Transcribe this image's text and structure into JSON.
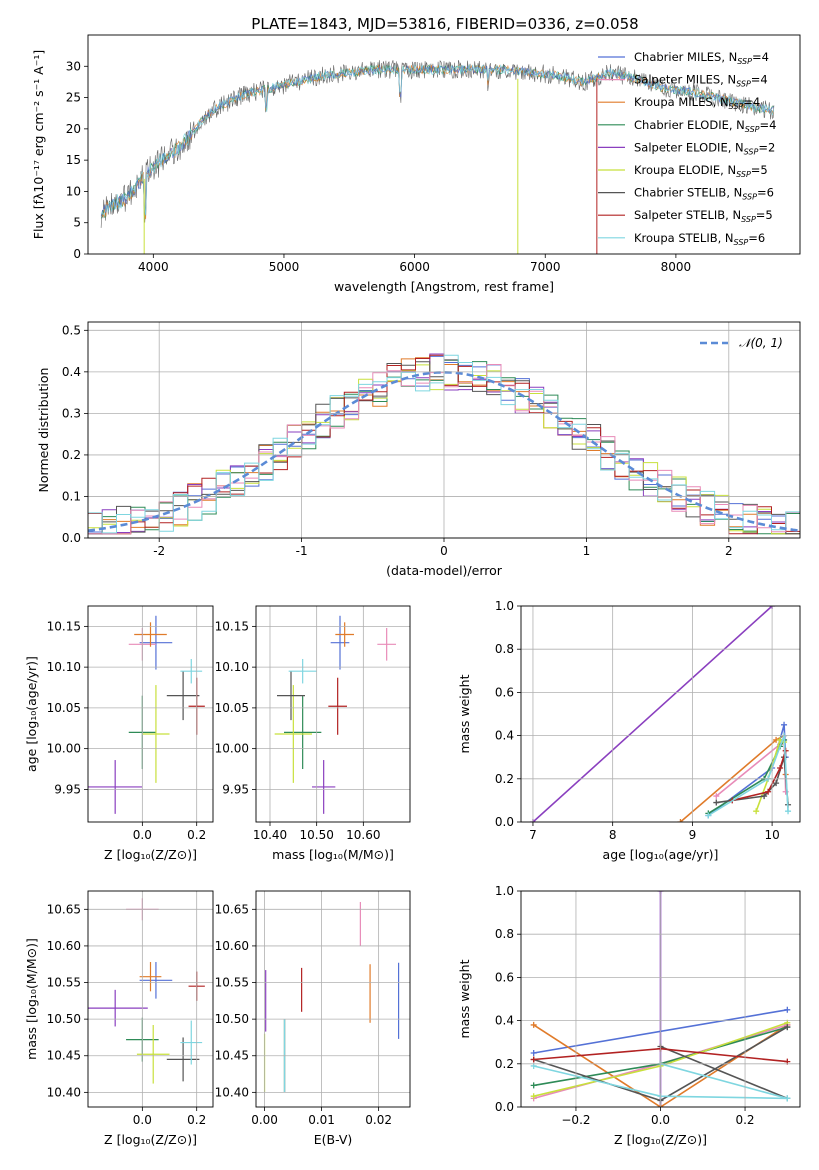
{
  "figure_title": "PLATE=1843, MJD=53816, FIBERID=0336, z=0.058",
  "colors": [
    "#5471d6",
    "#e07b2a",
    "#8a3fbf",
    "#2e8b57",
    "#c8e03c",
    "#555555",
    "#b22222",
    "#e88bb8",
    "#7fd6e0"
  ],
  "chart_data": [
    {
      "id": "spectrum",
      "type": "line",
      "title": "PLATE=1843, MJD=53816, FIBERID=0336, z=0.058",
      "xlabel": "wavelength [Angstrom, rest frame]",
      "ylabel": "Flux [fλ10⁻¹⁷ erg cm⁻² s⁻¹ A⁻¹]",
      "xlim": [
        3500,
        8950
      ],
      "ylim": [
        0,
        35
      ],
      "xticks": [
        4000,
        5000,
        6000,
        7000,
        8000
      ],
      "yticks": [
        0,
        5,
        10,
        15,
        20,
        25,
        30
      ],
      "grid": false,
      "legend_position": "top-right",
      "series": [
        {
          "name": "Chabrier MILES, N_SSP=4",
          "color": "#5471d6"
        },
        {
          "name": "Salpeter MILES, N_SSP=4",
          "color": "#e88bb8"
        },
        {
          "name": "Kroupa MILES, N_SSP=4",
          "color": "#e07b2a"
        },
        {
          "name": "Chabrier ELODIE, N_SSP=4",
          "color": "#2e8b57"
        },
        {
          "name": "Salpeter ELODIE, N_SSP=2",
          "color": "#8a3fbf"
        },
        {
          "name": "Kroupa ELODIE, N_SSP=5",
          "color": "#c8e03c"
        },
        {
          "name": "Chabrier STELIB, N_SSP=6",
          "color": "#555555"
        },
        {
          "name": "Salpeter STELIB, N_SSP=5",
          "color": "#b22222"
        },
        {
          "name": "Kroupa STELIB, N_SSP=6",
          "color": "#7fd6e0"
        }
      ],
      "continuum_x": [
        3600,
        3700,
        3800,
        3900,
        4000,
        4100,
        4200,
        4300,
        4400,
        4500,
        4700,
        4900,
        5100,
        5300,
        5500,
        5700,
        5900,
        6100,
        6300,
        6500,
        6700,
        6900,
        7100,
        7300,
        7500,
        7700,
        7900,
        8100,
        8300,
        8500,
        8700
      ],
      "continuum_y": [
        6.5,
        8.0,
        9.0,
        11.5,
        14.0,
        15.5,
        17.0,
        19.5,
        22.0,
        23.5,
        25.5,
        26.5,
        27.5,
        28.5,
        29.0,
        29.5,
        29.5,
        29.5,
        29.5,
        29.5,
        29.5,
        29.0,
        28.5,
        27.5,
        29.0,
        28.0,
        26.5,
        26.0,
        25.0,
        24.0,
        23.0
      ]
    },
    {
      "id": "residuals",
      "type": "step",
      "xlabel": "(data-model)/error",
      "ylabel": "Normed distribution",
      "xlim": [
        -2.5,
        2.5
      ],
      "ylim": [
        0,
        0.52
      ],
      "xticks": [
        -2,
        -1,
        0,
        1,
        2
      ],
      "yticks": [
        0.0,
        0.1,
        0.2,
        0.3,
        0.4,
        0.5
      ],
      "grid": true,
      "legend_position": "top-right",
      "reference_label": "𝒩(0, 1)",
      "reference_color": "#5b8bd6",
      "bin_width": 0.1
    },
    {
      "id": "age-vs-Z",
      "type": "errorbar",
      "xlabel": "Z [log₁₀(Z/Z⊙)]",
      "ylabel": "age  [log₁₀(age/yr)]",
      "xlim": [
        -0.2,
        0.26
      ],
      "ylim": [
        9.91,
        10.175
      ],
      "xticks": [
        0.0,
        0.2
      ],
      "yticks": [
        9.95,
        10.0,
        10.05,
        10.1,
        10.15
      ],
      "grid": true,
      "points": [
        {
          "color": "#5471d6",
          "x": 0.05,
          "xerr": 0.06,
          "y": 10.13,
          "yerr": 0.033
        },
        {
          "color": "#e88bb8",
          "x": 0.0,
          "xerr": 0.05,
          "y": 10.128,
          "yerr": 0.02
        },
        {
          "color": "#e07b2a",
          "x": 0.03,
          "xerr": 0.06,
          "y": 10.14,
          "yerr": 0.015
        },
        {
          "color": "#2e8b57",
          "x": 0.0,
          "xerr": 0.05,
          "y": 10.02,
          "yerr": 0.045
        },
        {
          "color": "#8a3fbf",
          "x": -0.1,
          "xerr": 0.1,
          "y": 9.953,
          "yerr": 0.033
        },
        {
          "color": "#c8e03c",
          "x": 0.05,
          "xerr": 0.05,
          "y": 10.018,
          "yerr": 0.06
        },
        {
          "color": "#555555",
          "x": 0.15,
          "xerr": 0.06,
          "y": 10.065,
          "yerr": 0.03
        },
        {
          "color": "#b22222",
          "x": 0.2,
          "xerr": 0.03,
          "y": 10.052,
          "yerr": 0.035
        },
        {
          "color": "#7fd6e0",
          "x": 0.18,
          "xerr": 0.04,
          "y": 10.095,
          "yerr": 0.015
        }
      ]
    },
    {
      "id": "age-vs-mass",
      "type": "errorbar",
      "xlabel": "mass [log₁₀(M/M⊙)]",
      "xlim": [
        10.37,
        10.7
      ],
      "ylim": [
        9.91,
        10.175
      ],
      "xticks": [
        10.4,
        10.5,
        10.6
      ],
      "yticks": [
        9.95,
        10.0,
        10.05,
        10.1,
        10.15
      ],
      "grid": true,
      "points": [
        {
          "color": "#5471d6",
          "x": 10.55,
          "xerr": 0.02,
          "y": 10.13,
          "yerr": 0.033
        },
        {
          "color": "#e88bb8",
          "x": 10.65,
          "xerr": 0.02,
          "y": 10.128,
          "yerr": 0.02
        },
        {
          "color": "#e07b2a",
          "x": 10.56,
          "xerr": 0.02,
          "y": 10.14,
          "yerr": 0.015
        },
        {
          "color": "#2e8b57",
          "x": 10.47,
          "xerr": 0.04,
          "y": 10.02,
          "yerr": 0.045
        },
        {
          "color": "#8a3fbf",
          "x": 10.515,
          "xerr": 0.025,
          "y": 9.953,
          "yerr": 0.033
        },
        {
          "color": "#c8e03c",
          "x": 10.45,
          "xerr": 0.04,
          "y": 10.018,
          "yerr": 0.06
        },
        {
          "color": "#555555",
          "x": 10.445,
          "xerr": 0.03,
          "y": 10.065,
          "yerr": 0.03
        },
        {
          "color": "#b22222",
          "x": 10.545,
          "xerr": 0.02,
          "y": 10.052,
          "yerr": 0.035
        },
        {
          "color": "#7fd6e0",
          "x": 10.47,
          "xerr": 0.03,
          "y": 10.095,
          "yerr": 0.015
        }
      ]
    },
    {
      "id": "weight-vs-age",
      "type": "line",
      "xlabel": "age  [log₁₀(age/yr)]",
      "ylabel": "mass weight",
      "xlim": [
        6.85,
        10.35
      ],
      "ylim": [
        0,
        1.0
      ],
      "xticks": [
        7,
        8,
        9,
        10
      ],
      "yticks": [
        0.0,
        0.2,
        0.4,
        0.6,
        0.8,
        1.0
      ],
      "grid": true,
      "series": [
        {
          "color": "#8a3fbf",
          "x": [
            7.0,
            10.0
          ],
          "y": [
            0.0,
            1.0
          ]
        },
        {
          "color": "#e07b2a",
          "x": [
            8.85,
            10.05,
            10.15,
            10.17
          ],
          "y": [
            0.0,
            0.38,
            0.4,
            0.22
          ]
        },
        {
          "color": "#e88bb8",
          "x": [
            9.3,
            10.1,
            10.15,
            10.17
          ],
          "y": [
            0.12,
            0.36,
            0.38,
            0.14
          ]
        },
        {
          "color": "#5471d6",
          "x": [
            9.2,
            10.0,
            10.15,
            10.17
          ],
          "y": [
            0.03,
            0.25,
            0.45,
            0.3
          ]
        },
        {
          "color": "#2e8b57",
          "x": [
            9.2,
            9.9,
            10.1,
            10.15
          ],
          "y": [
            0.04,
            0.2,
            0.35,
            0.38
          ]
        },
        {
          "color": "#c8e03c",
          "x": [
            9.8,
            9.95,
            10.1,
            10.15
          ],
          "y": [
            0.05,
            0.2,
            0.38,
            0.37
          ]
        },
        {
          "color": "#555555",
          "x": [
            9.3,
            9.9,
            10.05,
            10.15,
            10.2
          ],
          "y": [
            0.09,
            0.12,
            0.18,
            0.3,
            0.08
          ]
        },
        {
          "color": "#b22222",
          "x": [
            9.5,
            9.95,
            10.1,
            10.17
          ],
          "y": [
            0.1,
            0.14,
            0.25,
            0.33
          ]
        },
        {
          "color": "#7fd6e0",
          "x": [
            9.2,
            9.95,
            10.15,
            10.2
          ],
          "y": [
            0.03,
            0.2,
            0.4,
            0.05
          ]
        }
      ]
    },
    {
      "id": "mass-vs-Z",
      "type": "errorbar",
      "xlabel": "Z [log₁₀(Z/Z⊙)]",
      "ylabel": "mass [log₁₀(M/M⊙)]",
      "xlim": [
        -0.2,
        0.26
      ],
      "ylim": [
        10.38,
        10.675
      ],
      "xticks": [
        0.0,
        0.2
      ],
      "yticks": [
        10.4,
        10.45,
        10.5,
        10.55,
        10.6,
        10.65
      ],
      "grid": true,
      "points": [
        {
          "color": "#5471d6",
          "x": 0.05,
          "xerr": 0.06,
          "y": 10.553,
          "yerr": 0.025
        },
        {
          "color": "#e88bb8",
          "x": 0.0,
          "xerr": 0.06,
          "y": 10.65,
          "yerr": 0.015
        },
        {
          "color": "#e07b2a",
          "x": 0.03,
          "xerr": 0.04,
          "y": 10.558,
          "yerr": 0.02
        },
        {
          "color": "#2e8b57",
          "x": 0.0,
          "xerr": 0.06,
          "y": 10.472,
          "yerr": 0.03
        },
        {
          "color": "#8a3fbf",
          "x": -0.1,
          "xerr": 0.12,
          "y": 10.515,
          "yerr": 0.025
        },
        {
          "color": "#c8e03c",
          "x": 0.04,
          "xerr": 0.06,
          "y": 10.452,
          "yerr": 0.04
        },
        {
          "color": "#555555",
          "x": 0.15,
          "xerr": 0.06,
          "y": 10.445,
          "yerr": 0.03
        },
        {
          "color": "#b22222",
          "x": 0.2,
          "xerr": 0.03,
          "y": 10.545,
          "yerr": 0.02
        },
        {
          "color": "#7fd6e0",
          "x": 0.18,
          "xerr": 0.04,
          "y": 10.468,
          "yerr": 0.03
        }
      ]
    },
    {
      "id": "mass-vs-ebv",
      "type": "errorbar",
      "xlabel": "E(B-V)",
      "xlim": [
        -0.0015,
        0.0255
      ],
      "ylim": [
        10.38,
        10.675
      ],
      "xticks": [
        0.0,
        0.01,
        0.02
      ],
      "yticks": [
        10.4,
        10.45,
        10.5,
        10.55,
        10.6,
        10.65
      ],
      "grid": true,
      "points": [
        {
          "color": "#5471d6",
          "x": 0.0235,
          "xerr": 0.0,
          "y": 10.525,
          "yerr": 0.052
        },
        {
          "color": "#e88bb8",
          "x": 0.0168,
          "xerr": 0.0,
          "y": 10.63,
          "yerr": 0.03
        },
        {
          "color": "#e07b2a",
          "x": 0.0185,
          "xerr": 0.0,
          "y": 10.535,
          "yerr": 0.04
        },
        {
          "color": "#2e8b57",
          "x": 0.0035,
          "xerr": 0.0,
          "y": 10.45,
          "yerr": 0.05
        },
        {
          "color": "#8a3fbf",
          "x": 0.0002,
          "xerr": 0.0,
          "y": 10.525,
          "yerr": 0.042
        },
        {
          "color": "#c8e03c",
          "x": 0.0,
          "xerr": 0.0,
          "y": 10.44,
          "yerr": 0.04
        },
        {
          "color": "#555555",
          "x": 0.0035,
          "xerr": 0.0,
          "y": 10.45,
          "yerr": 0.05
        },
        {
          "color": "#b22222",
          "x": 0.0065,
          "xerr": 0.0,
          "y": 10.54,
          "yerr": 0.03
        },
        {
          "color": "#7fd6e0",
          "x": 0.0035,
          "xerr": 0.0,
          "y": 10.45,
          "yerr": 0.05
        }
      ]
    },
    {
      "id": "weight-vs-Z",
      "type": "line",
      "xlabel": "Z [log₁₀(Z/Z⊙)]",
      "ylabel": "mass weight",
      "xlim": [
        -0.33,
        0.33
      ],
      "ylim": [
        0,
        1.0
      ],
      "xticks": [
        -0.2,
        0.0,
        0.2
      ],
      "yticks": [
        0.0,
        0.2,
        0.4,
        0.6,
        0.8,
        1.0
      ],
      "grid": true,
      "series": [
        {
          "color": "#8a3fbf",
          "x": [
            0.0,
            0.0
          ],
          "y": [
            0.0,
            1.0
          ]
        },
        {
          "color": "#5471d6",
          "x": [
            -0.3,
            0.3
          ],
          "y": [
            0.25,
            0.45
          ]
        },
        {
          "color": "#e07b2a",
          "x": [
            -0.3,
            0.0,
            0.3
          ],
          "y": [
            0.38,
            0.0,
            0.38
          ]
        },
        {
          "color": "#e88bb8",
          "x": [
            -0.3,
            0.0,
            0.3
          ],
          "y": [
            0.04,
            0.2,
            0.38
          ]
        },
        {
          "color": "#2e8b57",
          "x": [
            -0.3,
            0.0,
            0.3
          ],
          "y": [
            0.1,
            0.2,
            0.37
          ]
        },
        {
          "color": "#c8e03c",
          "x": [
            -0.3,
            0.0,
            0.3
          ],
          "y": [
            0.05,
            0.19,
            0.39
          ]
        },
        {
          "color": "#555555",
          "x": [
            -0.3,
            0.0,
            0.3
          ],
          "y": [
            0.22,
            0.03,
            0.37
          ]
        },
        {
          "color": "#555555",
          "x": [
            0.0,
            0.3
          ],
          "y": [
            0.28,
            0.04
          ]
        },
        {
          "color": "#b22222",
          "x": [
            -0.3,
            0.0,
            0.3
          ],
          "y": [
            0.22,
            0.27,
            0.21
          ]
        },
        {
          "color": "#7fd6e0",
          "x": [
            -0.3,
            0.0,
            0.3
          ],
          "y": [
            0.19,
            0.05,
            0.04
          ]
        },
        {
          "color": "#7fd6e0",
          "x": [
            0.0,
            0.3
          ],
          "y": [
            0.2,
            0.04
          ]
        }
      ]
    }
  ]
}
